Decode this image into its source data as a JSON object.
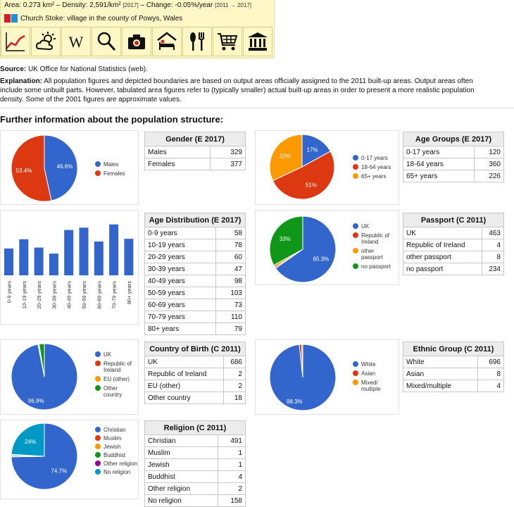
{
  "header": {
    "stats": {
      "area_label": "Area:",
      "area": "0.273 km²",
      "density_label": "Density:",
      "density": "2,591/km²",
      "density_year": "[2017]",
      "change_label": "Change:",
      "change": "-0.05%/year",
      "change_years": "[2011 → 2017]"
    },
    "place": "Church Stoke: village in the county of Powys, Wales",
    "icons": [
      "chart-icon",
      "weather-icon",
      "wikipedia-icon",
      "search-icon",
      "camera-icon",
      "hotel-icon",
      "restaurant-icon",
      "shopping-cart-icon",
      "museum-icon"
    ]
  },
  "source": {
    "label": "Source:",
    "text": "UK Office for National Statistics (web)."
  },
  "explanation": {
    "label": "Explanation:",
    "line1": "All population figures and depicted boundaries are based on output areas officially assigned to the 2011 built-up areas. Output areas often",
    "line2": "include some unbuilt parts. However, tabulated area figures refer to (typically smaller) actual built-up areas in order to present a more realistic population",
    "line3": "density. Some of the 2001 figures are approximate values."
  },
  "section_title": "Further information about the population structure:",
  "colors": {
    "blue": "#3366cc",
    "red": "#dc3912",
    "orange": "#ff9900",
    "green": "#109618",
    "purple": "#990099",
    "teal": "#0099c6"
  },
  "gender": {
    "title": "Gender (E 2017)",
    "rows": [
      {
        "label": "Males",
        "value": "329"
      },
      {
        "label": "Females",
        "value": "377"
      }
    ],
    "legend": [
      "Males",
      "Females"
    ],
    "pie_labels": [
      "46.6%",
      "53.4%"
    ]
  },
  "age_groups": {
    "title": "Age Groups (E 2017)",
    "rows": [
      {
        "label": "0-17 years",
        "value": "120"
      },
      {
        "label": "18-64 years",
        "value": "360"
      },
      {
        "label": "65+ years",
        "value": "226"
      }
    ],
    "legend": [
      "0-17 years",
      "18-64 years",
      "65+ years"
    ],
    "pie_labels": [
      "17%",
      "51%",
      "32%"
    ]
  },
  "age_distribution": {
    "title": "Age Distribution (E 2017)",
    "rows": [
      {
        "label": "0-9 years",
        "value": "58"
      },
      {
        "label": "10-19 years",
        "value": "78"
      },
      {
        "label": "20-29 years",
        "value": "60"
      },
      {
        "label": "30-39 years",
        "value": "47"
      },
      {
        "label": "40-49 years",
        "value": "98"
      },
      {
        "label": "50-59 years",
        "value": "103"
      },
      {
        "label": "60-69 years",
        "value": "73"
      },
      {
        "label": "70-79 years",
        "value": "110"
      },
      {
        "label": "80+ years",
        "value": "79"
      }
    ]
  },
  "passport": {
    "title": "Passport (C 2011)",
    "rows": [
      {
        "label": "UK",
        "value": "463"
      },
      {
        "label": "Republic of Ireland",
        "value": "4"
      },
      {
        "label": "other passport",
        "value": "8"
      },
      {
        "label": "no passport",
        "value": "234"
      }
    ],
    "legend": [
      "UK",
      "Republic of Ireland",
      "other passport",
      "no passport"
    ],
    "pie_labels": [
      "65.3%",
      "33%"
    ]
  },
  "birth": {
    "title": "Country of Birth (C 2011)",
    "rows": [
      {
        "label": "UK",
        "value": "686"
      },
      {
        "label": "Republic of Ireland",
        "value": "2"
      },
      {
        "label": "EU (other)",
        "value": "2"
      },
      {
        "label": "Other country",
        "value": "18"
      }
    ],
    "legend": [
      "UK",
      "Republic of Ireland",
      "EU (other)",
      "Other country"
    ],
    "pie_labels": [
      "96.9%"
    ]
  },
  "ethnic": {
    "title": "Ethnic Group (C 2011)",
    "rows": [
      {
        "label": "White",
        "value": "696"
      },
      {
        "label": "Asian",
        "value": "8"
      },
      {
        "label": "Mixed/multiple",
        "value": "4"
      }
    ],
    "legend": [
      "White",
      "Asian",
      "Mixed/ multiple"
    ],
    "pie_labels": [
      "98.3%"
    ]
  },
  "religion": {
    "title": "Religion (C 2011)",
    "rows": [
      {
        "label": "Christian",
        "value": "491"
      },
      {
        "label": "Muslim",
        "value": "1"
      },
      {
        "label": "Jewish",
        "value": "1"
      },
      {
        "label": "Buddhist",
        "value": "4"
      },
      {
        "label": "Other religion",
        "value": "2"
      },
      {
        "label": "No religion",
        "value": "158"
      }
    ],
    "legend": [
      "Christian",
      "Muslim",
      "Jewish",
      "Buddhist",
      "Other religion",
      "No religion"
    ],
    "pie_labels": [
      "74.7%",
      "24%"
    ]
  },
  "chart_data": [
    {
      "type": "pie",
      "categories": [
        "Males",
        "Females"
      ],
      "values": [
        329,
        377
      ]
    },
    {
      "type": "pie",
      "categories": [
        "0-17 years",
        "18-64 years",
        "65+ years"
      ],
      "values": [
        120,
        360,
        226
      ]
    },
    {
      "type": "bar",
      "categories": [
        "0-9 years",
        "10-19 years",
        "20-29 years",
        "30-39 years",
        "40-49 years",
        "50-59 years",
        "60-69 years",
        "70-79 years",
        "80+ years"
      ],
      "values": [
        58,
        78,
        60,
        47,
        98,
        103,
        73,
        110,
        79
      ],
      "ylim": [
        0,
        140
      ]
    },
    {
      "type": "pie",
      "categories": [
        "UK",
        "Republic of Ireland",
        "other passport",
        "no passport"
      ],
      "values": [
        463,
        4,
        8,
        234
      ]
    },
    {
      "type": "pie",
      "categories": [
        "UK",
        "Republic of Ireland",
        "EU (other)",
        "Other country"
      ],
      "values": [
        686,
        2,
        2,
        18
      ]
    },
    {
      "type": "pie",
      "categories": [
        "White",
        "Asian",
        "Mixed/multiple"
      ],
      "values": [
        696,
        8,
        4
      ]
    },
    {
      "type": "pie",
      "categories": [
        "Christian",
        "Muslim",
        "Jewish",
        "Buddhist",
        "Other religion",
        "No religion"
      ],
      "values": [
        491,
        1,
        1,
        4,
        2,
        158
      ]
    }
  ]
}
